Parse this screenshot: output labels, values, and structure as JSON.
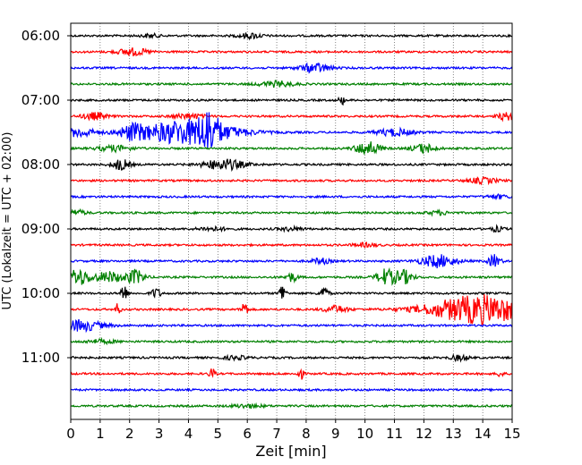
{
  "chart_data": {
    "type": "line",
    "title": "",
    "xlabel": "Zeit  [min]",
    "ylabel": "UTC (Lokalzeit = UTC + 02:00)",
    "xlim": [
      0,
      15
    ],
    "x_ticks": [
      "0",
      "1",
      "2",
      "3",
      "4",
      "5",
      "6",
      "7",
      "8",
      "9",
      "10",
      "11",
      "12",
      "13",
      "14",
      "15"
    ],
    "y_ticks": [
      "06:00",
      "07:00",
      "08:00",
      "09:00",
      "10:00",
      "11:00"
    ],
    "grid": "vertical dotted lines at every minute",
    "trace_interval_min": 15,
    "first_trace": "06:00",
    "colors": [
      "#000000",
      "#ff0000",
      "#0000ff",
      "#008000"
    ],
    "series": [
      {
        "start": "06:00",
        "events": [
          {
            "t": 2.7,
            "amp": 2,
            "dur": 0.3
          },
          {
            "t": 6.1,
            "amp": 3,
            "dur": 0.4
          }
        ]
      },
      {
        "start": "06:15",
        "events": [
          {
            "t": 2.1,
            "amp": 4,
            "dur": 0.5
          }
        ]
      },
      {
        "start": "06:30",
        "events": [
          {
            "t": 8.3,
            "amp": 5,
            "dur": 0.5
          }
        ]
      },
      {
        "start": "06:45",
        "events": [
          {
            "t": 7.0,
            "amp": 3,
            "dur": 0.6
          }
        ]
      },
      {
        "start": "07:00",
        "events": [
          {
            "t": 9.2,
            "amp": 5,
            "dur": 0.1
          }
        ]
      },
      {
        "start": "07:15",
        "events": [
          {
            "t": 0.8,
            "amp": 4,
            "dur": 0.4
          },
          {
            "t": 4.0,
            "amp": 3,
            "dur": 0.5
          },
          {
            "t": 14.8,
            "amp": 4,
            "dur": 0.3
          }
        ]
      },
      {
        "start": "07:30",
        "events": [
          {
            "t": 0.3,
            "amp": 5,
            "dur": 0.5
          },
          {
            "t": 2.1,
            "amp": 7,
            "dur": 0.4
          },
          {
            "t": 4.0,
            "amp": 14,
            "dur": 1.6
          },
          {
            "t": 4.7,
            "amp": 16,
            "dur": 0.3
          },
          {
            "t": 11.0,
            "amp": 4,
            "dur": 0.6
          }
        ]
      },
      {
        "start": "07:45",
        "events": [
          {
            "t": 1.5,
            "amp": 3,
            "dur": 0.6
          },
          {
            "t": 10.1,
            "amp": 8,
            "dur": 0.4
          },
          {
            "t": 12.0,
            "amp": 5,
            "dur": 0.4
          }
        ]
      },
      {
        "start": "08:00",
        "events": [
          {
            "t": 1.7,
            "amp": 6,
            "dur": 0.3
          },
          {
            "t": 5.2,
            "amp": 6,
            "dur": 0.7
          }
        ]
      },
      {
        "start": "08:15",
        "events": [
          {
            "t": 14.0,
            "amp": 3,
            "dur": 0.5
          }
        ]
      },
      {
        "start": "08:30",
        "events": [
          {
            "t": 14.5,
            "amp": 2,
            "dur": 0.4
          }
        ]
      },
      {
        "start": "08:45",
        "events": [
          {
            "t": 0.2,
            "amp": 3,
            "dur": 0.3
          },
          {
            "t": 12.5,
            "amp": 2,
            "dur": 0.4
          }
        ]
      },
      {
        "start": "09:00",
        "events": [
          {
            "t": 4.8,
            "amp": 2,
            "dur": 0.5
          },
          {
            "t": 7.5,
            "amp": 2,
            "dur": 0.4
          },
          {
            "t": 14.5,
            "amp": 3,
            "dur": 0.2
          }
        ]
      },
      {
        "start": "09:15",
        "events": [
          {
            "t": 10.0,
            "amp": 2,
            "dur": 0.4
          }
        ]
      },
      {
        "start": "09:30",
        "events": [
          {
            "t": 8.5,
            "amp": 3,
            "dur": 0.3
          },
          {
            "t": 12.5,
            "amp": 7,
            "dur": 0.6
          },
          {
            "t": 14.4,
            "amp": 7,
            "dur": 0.2
          }
        ]
      },
      {
        "start": "09:45",
        "events": [
          {
            "t": 0.25,
            "amp": 9,
            "dur": 0.4
          },
          {
            "t": 1.3,
            "amp": 6,
            "dur": 0.5
          },
          {
            "t": 2.2,
            "amp": 8,
            "dur": 0.3
          },
          {
            "t": 7.5,
            "amp": 5,
            "dur": 0.2
          },
          {
            "t": 10.7,
            "amp": 9,
            "dur": 0.3
          },
          {
            "t": 11.3,
            "amp": 8,
            "dur": 0.3
          }
        ]
      },
      {
        "start": "10:00",
        "events": [
          {
            "t": 1.8,
            "amp": 12,
            "dur": 0.1
          },
          {
            "t": 2.9,
            "amp": 6,
            "dur": 0.15
          },
          {
            "t": 7.2,
            "amp": 12,
            "dur": 0.1
          },
          {
            "t": 8.6,
            "amp": 7,
            "dur": 0.15
          }
        ]
      },
      {
        "start": "10:15",
        "events": [
          {
            "t": 1.6,
            "amp": 6,
            "dur": 0.1
          },
          {
            "t": 5.9,
            "amp": 10,
            "dur": 0.1
          },
          {
            "t": 9.0,
            "amp": 4,
            "dur": 0.4
          },
          {
            "t": 13.9,
            "amp": 16,
            "dur": 1.7
          }
        ]
      },
      {
        "start": "10:30",
        "events": [
          {
            "t": 0.3,
            "amp": 6,
            "dur": 0.8
          }
        ]
      },
      {
        "start": "10:45",
        "events": [
          {
            "t": 1.0,
            "amp": 2,
            "dur": 0.5
          }
        ]
      },
      {
        "start": "11:00",
        "events": [
          {
            "t": 0.1,
            "amp": 4,
            "dur": 0.1
          },
          {
            "t": 5.6,
            "amp": 2,
            "dur": 0.4
          },
          {
            "t": 13.2,
            "amp": 3,
            "dur": 0.3
          }
        ]
      },
      {
        "start": "11:15",
        "events": [
          {
            "t": 4.8,
            "amp": 6,
            "dur": 0.1
          },
          {
            "t": 7.8,
            "amp": 7,
            "dur": 0.1
          },
          {
            "t": 14.6,
            "amp": 4,
            "dur": 0.1
          }
        ]
      },
      {
        "start": "11:30",
        "events": []
      },
      {
        "start": "11:45",
        "events": [
          {
            "t": 6.0,
            "amp": 2,
            "dur": 0.5
          }
        ]
      }
    ]
  }
}
